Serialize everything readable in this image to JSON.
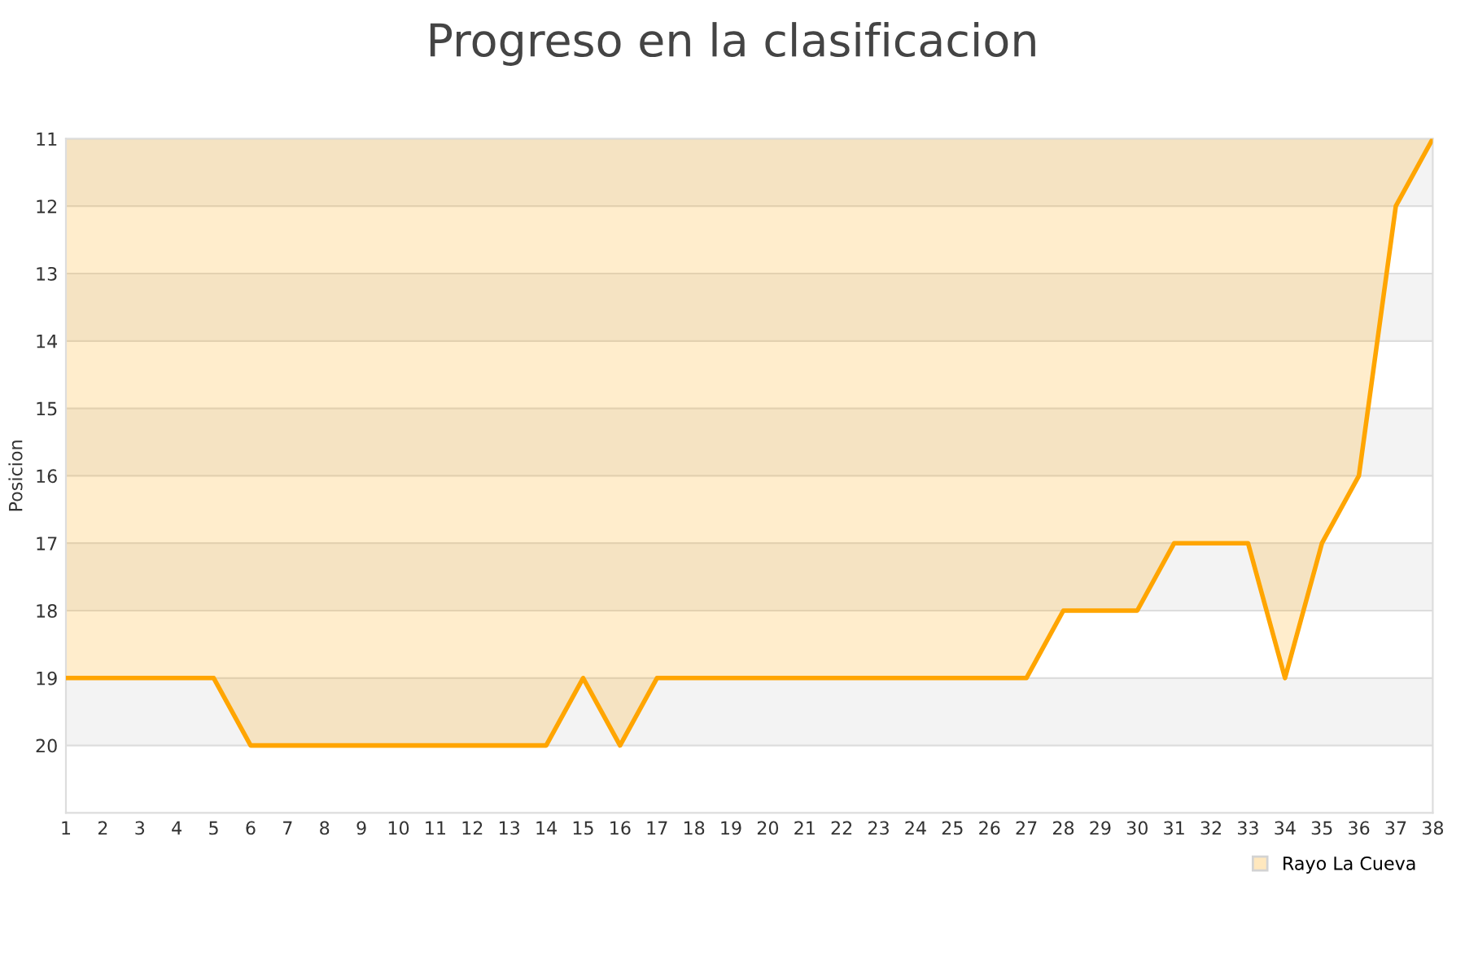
{
  "chart_data": {
    "type": "area",
    "title": "Progreso en la clasificacion",
    "ylabel": "Posicion",
    "x": [
      1,
      2,
      3,
      4,
      5,
      6,
      7,
      8,
      9,
      10,
      11,
      12,
      13,
      14,
      15,
      16,
      17,
      18,
      19,
      20,
      21,
      22,
      23,
      24,
      25,
      26,
      27,
      28,
      29,
      30,
      31,
      32,
      33,
      34,
      35,
      36,
      37,
      38
    ],
    "series": [
      {
        "name": "Rayo La Cueva",
        "color": "#ffa500",
        "values": [
          19,
          19,
          19,
          19,
          19,
          20,
          20,
          20,
          20,
          20,
          20,
          20,
          20,
          20,
          19,
          20,
          19,
          19,
          19,
          19,
          19,
          19,
          19,
          19,
          19,
          19,
          19,
          18,
          18,
          18,
          17,
          17,
          17,
          19,
          17,
          16,
          12,
          11
        ]
      }
    ],
    "xlim": [
      1,
      38
    ],
    "xticks": [
      1,
      2,
      3,
      4,
      5,
      6,
      7,
      8,
      9,
      10,
      11,
      12,
      13,
      14,
      15,
      16,
      17,
      18,
      19,
      20,
      21,
      22,
      23,
      24,
      25,
      26,
      27,
      28,
      29,
      30,
      31,
      32,
      33,
      34,
      35,
      36,
      37,
      38
    ],
    "ylim": [
      21,
      11
    ],
    "yticks": [
      11,
      12,
      13,
      14,
      15,
      16,
      17,
      18,
      19,
      20
    ],
    "bands": [
      {
        "axis": "y",
        "from": 11,
        "to": 12,
        "color": "#f3f3f3"
      },
      {
        "axis": "y",
        "from": 13,
        "to": 14,
        "color": "#f3f3f3"
      },
      {
        "axis": "y",
        "from": 15,
        "to": 16,
        "color": "#f3f3f3"
      },
      {
        "axis": "y",
        "from": 17,
        "to": 18,
        "color": "#f3f3f3"
      },
      {
        "axis": "y",
        "from": 19,
        "to": 20,
        "color": "#f3f3f3"
      }
    ],
    "grid": "y",
    "legend": "bottom right",
    "marker": "none",
    "line_style": "solid"
  }
}
